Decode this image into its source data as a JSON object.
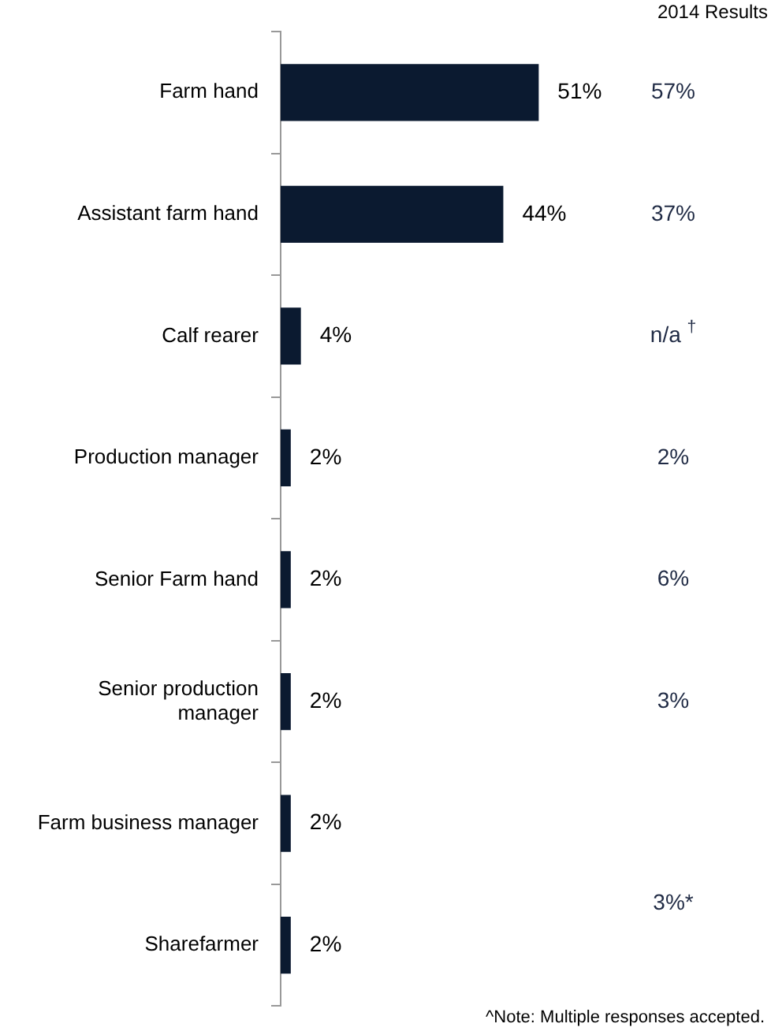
{
  "chart_data": {
    "type": "bar",
    "orientation": "horizontal",
    "categories": [
      "Farm hand",
      "Assistant farm hand",
      "Calf rearer",
      "Production manager",
      "Senior Farm hand",
      "Senior production manager",
      "Farm business manager",
      "Sharefarmer"
    ],
    "values": [
      51,
      44,
      4,
      2,
      2,
      2,
      2,
      2
    ],
    "value_labels": [
      "51%",
      "44%",
      "4%",
      "2%",
      "2%",
      "2%",
      "2%",
      "2%"
    ],
    "color": "#0b1a30",
    "legend": false,
    "annotations": [
      "2014 Results",
      "57%",
      "37%",
      "n/a $^{†}$",
      "2%",
      "6%",
      "3%",
      "3%*",
      "^Note: Multiple responses accepted."
    ]
  }
}
